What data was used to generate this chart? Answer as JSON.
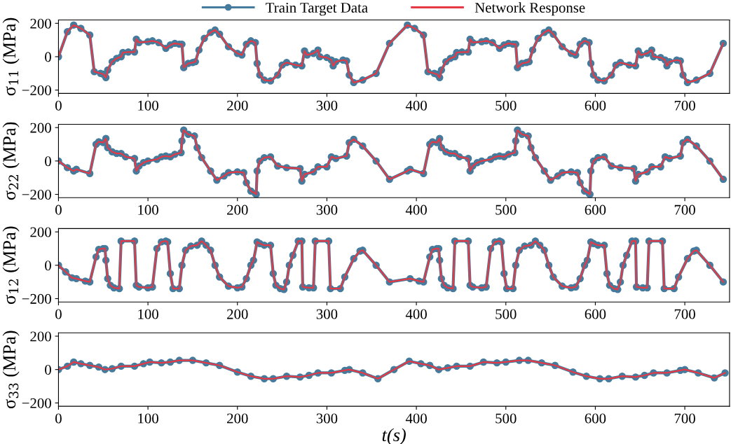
{
  "chart_data": [
    {
      "type": "line",
      "ylabel": "σ$_{11}$ (MPa)",
      "xlim": [
        0,
        750
      ],
      "ylim": [
        -220,
        220
      ],
      "xticks": [
        0,
        100,
        200,
        300,
        400,
        500,
        600,
        700
      ],
      "yticks": [
        -200,
        0,
        200
      ],
      "grid": false,
      "legend": "top",
      "x": [
        0,
        10,
        17,
        25,
        35,
        40,
        47,
        50,
        53,
        55,
        60,
        65,
        70,
        72,
        78,
        85,
        87,
        90,
        100,
        105,
        112,
        120,
        125,
        130,
        135,
        138,
        140,
        145,
        150,
        153,
        157,
        163,
        170,
        175,
        180,
        190,
        200,
        205,
        210,
        215,
        220,
        222,
        225,
        230,
        237,
        245,
        250,
        255,
        265,
        272,
        275,
        278,
        285,
        290,
        292,
        300,
        305,
        307,
        310,
        318,
        322,
        325,
        330,
        340,
        355,
        370,
        390,
        398,
        408,
        413,
        420,
        423,
        426,
        428,
        433,
        438,
        443,
        445,
        451,
        458,
        460,
        463,
        473,
        478,
        485,
        493,
        498,
        503,
        508,
        511,
        513,
        518,
        523,
        526,
        530,
        536,
        543,
        548,
        553,
        563,
        573,
        578,
        583,
        588,
        593,
        595,
        598,
        603,
        610,
        618,
        623,
        628,
        638,
        645,
        648,
        651,
        658,
        663,
        665,
        673,
        678,
        680,
        683,
        691,
        695,
        698,
        703,
        713,
        728,
        743
      ],
      "series": [
        {
          "name": "Train Target Data",
          "color": "#457b9d",
          "marker": "circle",
          "values": [
            0,
            150,
            190,
            170,
            130,
            -90,
            -100,
            -105,
            -125,
            -80,
            -30,
            -10,
            0,
            25,
            28,
            28,
            105,
            85,
            90,
            95,
            85,
            50,
            70,
            80,
            75,
            75,
            -65,
            -40,
            -35,
            -30,
            40,
            110,
            145,
            160,
            135,
            60,
            20,
            10,
            75,
            95,
            85,
            -40,
            -110,
            -140,
            -145,
            -110,
            -50,
            -35,
            -50,
            -55,
            35,
            10,
            20,
            40,
            0,
            -5,
            -20,
            -55,
            -30,
            -20,
            -25,
            -110,
            -155,
            -140,
            -100,
            80,
            190,
            170,
            130,
            -90,
            -100,
            -105,
            -125,
            -80,
            -30,
            -10,
            0,
            25,
            28,
            28,
            105,
            85,
            90,
            95,
            85,
            50,
            70,
            80,
            75,
            75,
            -65,
            -40,
            -35,
            -30,
            40,
            110,
            145,
            160,
            135,
            60,
            20,
            10,
            75,
            95,
            85,
            -40,
            -110,
            -140,
            -145,
            -110,
            -50,
            -35,
            -50,
            -55,
            35,
            10,
            20,
            40,
            0,
            -5,
            -20,
            -55,
            -30,
            -20,
            -25,
            -110,
            -155,
            -140,
            -100,
            80
          ]
        },
        {
          "name": "Network Response",
          "color": "#e63946",
          "marker": "none",
          "values": [
            0,
            150,
            190,
            170,
            130,
            -90,
            -100,
            -105,
            -125,
            -80,
            -30,
            -10,
            0,
            25,
            28,
            28,
            105,
            85,
            90,
            95,
            85,
            50,
            70,
            80,
            75,
            75,
            -65,
            -40,
            -35,
            -30,
            40,
            110,
            145,
            160,
            135,
            60,
            20,
            10,
            75,
            95,
            85,
            -40,
            -110,
            -140,
            -145,
            -110,
            -50,
            -35,
            -50,
            -55,
            35,
            10,
            20,
            40,
            0,
            -5,
            -20,
            -55,
            -30,
            -20,
            -25,
            -110,
            -155,
            -140,
            -100,
            80,
            190,
            170,
            130,
            -90,
            -100,
            -105,
            -125,
            -80,
            -30,
            -10,
            0,
            25,
            28,
            28,
            105,
            85,
            90,
            95,
            85,
            50,
            70,
            80,
            75,
            75,
            -65,
            -40,
            -35,
            -30,
            40,
            110,
            145,
            160,
            135,
            60,
            20,
            10,
            75,
            95,
            85,
            -40,
            -110,
            -140,
            -145,
            -110,
            -50,
            -35,
            -50,
            -55,
            35,
            10,
            20,
            40,
            0,
            -5,
            -20,
            -55,
            -30,
            -20,
            -25,
            -110,
            -155,
            -140,
            -100,
            80
          ]
        }
      ]
    },
    {
      "type": "line",
      "ylabel": "σ$_{22}$ (MPa)",
      "xlim": [
        0,
        750
      ],
      "ylim": [
        -220,
        220
      ],
      "xticks": [
        0,
        100,
        200,
        300,
        400,
        500,
        600,
        700
      ],
      "yticks": [
        -200,
        0,
        200
      ],
      "grid": false,
      "x": [
        0,
        10,
        17,
        20,
        35,
        42,
        45,
        50,
        53,
        55,
        60,
        65,
        70,
        75,
        85,
        87,
        90,
        95,
        100,
        110,
        115,
        120,
        125,
        130,
        137,
        138,
        140,
        145,
        152,
        155,
        160,
        170,
        177,
        185,
        190,
        200,
        207,
        210,
        215,
        220,
        221,
        222,
        225,
        230,
        237,
        245,
        255,
        270,
        272,
        275,
        285,
        290,
        300,
        305,
        310,
        322,
        325,
        330,
        340,
        355,
        370,
        390,
        393,
        408,
        415,
        418,
        423,
        426,
        428,
        433,
        438,
        443,
        448,
        458,
        460,
        463,
        468,
        473,
        483,
        488,
        493,
        498,
        503,
        510,
        511,
        513,
        518,
        525,
        528,
        533,
        543,
        550,
        558,
        563,
        573,
        580,
        583,
        588,
        593,
        594,
        595,
        598,
        603,
        610,
        618,
        628,
        643,
        645,
        648,
        658,
        663,
        673,
        678,
        683,
        695,
        698,
        703,
        713,
        728,
        743
      ],
      "series": [
        {
          "color": "#457b9d",
          "marker": "circle",
          "values": [
            0,
            -40,
            -60,
            -50,
            -75,
            100,
            115,
            110,
            135,
            80,
            55,
            45,
            45,
            25,
            15,
            -60,
            -30,
            -10,
            0,
            10,
            25,
            30,
            25,
            40,
            50,
            120,
            185,
            160,
            150,
            80,
            20,
            -60,
            -115,
            -90,
            -70,
            -65,
            -70,
            -130,
            -180,
            -195,
            -200,
            -60,
            0,
            20,
            25,
            -30,
            -40,
            -45,
            -120,
            -80,
            -65,
            -35,
            -35,
            25,
            15,
            30,
            110,
            130,
            90,
            0,
            -110,
            -60,
            -50,
            -75,
            100,
            115,
            110,
            135,
            80,
            55,
            45,
            45,
            25,
            15,
            -60,
            -30,
            -10,
            0,
            10,
            25,
            30,
            25,
            40,
            50,
            120,
            185,
            160,
            150,
            80,
            20,
            -60,
            -115,
            -90,
            -70,
            -65,
            -70,
            -130,
            -180,
            -195,
            -200,
            -60,
            0,
            20,
            25,
            -30,
            -40,
            -45,
            -120,
            -80,
            -65,
            -35,
            -35,
            25,
            15,
            30,
            110,
            130,
            90,
            0,
            -110
          ]
        },
        {
          "color": "#e63946",
          "marker": "none",
          "values": [
            0,
            -40,
            -60,
            -50,
            -75,
            100,
            115,
            110,
            135,
            80,
            55,
            45,
            45,
            25,
            15,
            -60,
            -30,
            -10,
            0,
            10,
            25,
            30,
            25,
            40,
            50,
            120,
            185,
            160,
            150,
            80,
            20,
            -60,
            -115,
            -90,
            -70,
            -65,
            -70,
            -130,
            -180,
            -195,
            -200,
            -60,
            0,
            20,
            25,
            -30,
            -40,
            -45,
            -120,
            -80,
            -65,
            -35,
            -35,
            25,
            15,
            30,
            110,
            130,
            90,
            0,
            -110,
            -60,
            -50,
            -75,
            100,
            115,
            110,
            135,
            80,
            55,
            45,
            45,
            25,
            15,
            -60,
            -30,
            -10,
            0,
            10,
            25,
            30,
            25,
            40,
            50,
            120,
            185,
            160,
            150,
            80,
            20,
            -60,
            -115,
            -90,
            -70,
            -65,
            -70,
            -130,
            -180,
            -195,
            -200,
            -60,
            0,
            20,
            25,
            -30,
            -40,
            -45,
            -120,
            -80,
            -65,
            -35,
            -35,
            25,
            15,
            30,
            110,
            130,
            90,
            0,
            -110
          ]
        }
      ]
    },
    {
      "type": "line",
      "ylabel": "σ$_{12}$ (MPa)",
      "xlim": [
        0,
        750
      ],
      "ylim": [
        -220,
        220
      ],
      "xticks": [
        0,
        100,
        200,
        300,
        400,
        500,
        600,
        700
      ],
      "yticks": [
        -200,
        0,
        200
      ],
      "grid": false,
      "x": [
        0,
        8,
        15,
        20,
        30,
        35,
        42,
        45,
        50,
        52,
        53,
        55,
        58,
        62,
        68,
        70,
        85,
        87,
        90,
        100,
        105,
        110,
        115,
        120,
        122,
        125,
        128,
        135,
        138,
        142,
        148,
        155,
        160,
        165,
        170,
        175,
        180,
        190,
        200,
        205,
        210,
        215,
        218,
        222,
        225,
        230,
        237,
        240,
        243,
        248,
        252,
        255,
        258,
        262,
        268,
        272,
        273,
        280,
        285,
        287,
        302,
        304,
        315,
        320,
        330,
        337,
        340,
        355,
        370,
        393,
        403,
        408,
        415,
        418,
        423,
        425,
        426,
        428,
        431,
        435,
        441,
        443,
        458,
        460,
        463,
        473,
        478,
        483,
        488,
        493,
        495,
        498,
        501,
        508,
        511,
        515,
        521,
        528,
        533,
        538,
        543,
        548,
        553,
        563,
        573,
        578,
        583,
        588,
        591,
        595,
        598,
        603,
        610,
        613,
        616,
        621,
        625,
        628,
        631,
        635,
        641,
        645,
        646,
        653,
        658,
        660,
        675,
        677,
        688,
        693,
        703,
        710,
        713,
        728,
        743
      ],
      "series": [
        {
          "color": "#457b9d",
          "marker": "circle",
          "values": [
            0,
            -40,
            -75,
            -80,
            -95,
            -100,
            50,
            95,
            100,
            100,
            30,
            -80,
            -120,
            -135,
            -140,
            145,
            145,
            -120,
            -130,
            -135,
            -130,
            100,
            140,
            145,
            140,
            -50,
            -140,
            -140,
            0,
            90,
            115,
            120,
            145,
            120,
            90,
            0,
            -70,
            -125,
            -135,
            -130,
            -80,
            0,
            30,
            140,
            130,
            120,
            120,
            -50,
            -120,
            -140,
            -145,
            -100,
            0,
            60,
            145,
            145,
            -130,
            -135,
            -135,
            145,
            145,
            -140,
            -140,
            -70,
            40,
            85,
            90,
            0,
            -100,
            -80,
            -95,
            -100,
            50,
            95,
            100,
            100,
            30,
            -80,
            -120,
            -135,
            -140,
            145,
            145,
            -120,
            -130,
            -135,
            -130,
            100,
            140,
            145,
            140,
            -50,
            -140,
            -140,
            0,
            90,
            115,
            120,
            145,
            120,
            90,
            0,
            -70,
            -125,
            -135,
            -130,
            -80,
            0,
            30,
            140,
            130,
            120,
            120,
            -50,
            -120,
            -140,
            -145,
            -100,
            0,
            60,
            145,
            145,
            -130,
            -135,
            -135,
            145,
            145,
            -140,
            -140,
            -70,
            40,
            85,
            90,
            0,
            -100
          ]
        },
        {
          "color": "#e63946",
          "marker": "none",
          "values": [
            0,
            -40,
            -75,
            -80,
            -95,
            -100,
            50,
            95,
            100,
            100,
            30,
            -80,
            -120,
            -135,
            -140,
            145,
            145,
            -120,
            -130,
            -135,
            -130,
            100,
            140,
            145,
            140,
            -50,
            -140,
            -140,
            0,
            90,
            115,
            120,
            145,
            120,
            90,
            0,
            -70,
            -125,
            -135,
            -130,
            -80,
            0,
            30,
            140,
            130,
            120,
            120,
            -50,
            -120,
            -140,
            -145,
            -100,
            0,
            60,
            145,
            145,
            -130,
            -135,
            -135,
            145,
            145,
            -140,
            -140,
            -70,
            40,
            85,
            90,
            0,
            -100,
            -80,
            -95,
            -100,
            50,
            95,
            100,
            100,
            30,
            -80,
            -120,
            -135,
            -140,
            145,
            145,
            -120,
            -130,
            -135,
            -130,
            100,
            140,
            145,
            140,
            -50,
            -140,
            -140,
            0,
            90,
            115,
            120,
            145,
            120,
            90,
            0,
            -70,
            -125,
            -135,
            -130,
            -80,
            0,
            30,
            140,
            130,
            120,
            120,
            -50,
            -120,
            -140,
            -145,
            -100,
            0,
            60,
            145,
            145,
            -130,
            -135,
            -135,
            145,
            145,
            -140,
            -140,
            -70,
            40,
            85,
            90,
            0,
            -100
          ]
        }
      ]
    },
    {
      "type": "line",
      "ylabel": "σ$_{33}$ (MPa)",
      "xlabel": "t(s)",
      "xlim": [
        0,
        750
      ],
      "ylim": [
        -220,
        220
      ],
      "xticks": [
        0,
        100,
        200,
        300,
        400,
        500,
        600,
        700
      ],
      "yticks": [
        -200,
        0,
        200
      ],
      "grid": false,
      "x": [
        0,
        10,
        17,
        25,
        35,
        45,
        52,
        60,
        70,
        85,
        95,
        102,
        115,
        125,
        135,
        150,
        165,
        180,
        200,
        215,
        230,
        240,
        255,
        270,
        280,
        290,
        305,
        320,
        325,
        340,
        357,
        375,
        392,
        405,
        415,
        425,
        435,
        445,
        460,
        475,
        490,
        500,
        515,
        525,
        540,
        555,
        575,
        590,
        605,
        615,
        630,
        645,
        655,
        665,
        680,
        695,
        700,
        715,
        733,
        745
      ],
      "series": [
        {
          "color": "#457b9d",
          "marker": "circle",
          "values": [
            0,
            20,
            45,
            35,
            25,
            15,
            0,
            5,
            20,
            20,
            35,
            45,
            40,
            45,
            55,
            55,
            40,
            25,
            -15,
            -40,
            -55,
            -55,
            -40,
            -45,
            -35,
            -20,
            -20,
            -5,
            0,
            -20,
            -55,
            0,
            50,
            35,
            25,
            0,
            10,
            20,
            20,
            45,
            40,
            45,
            55,
            55,
            40,
            25,
            -15,
            -40,
            -55,
            -55,
            -40,
            -45,
            -35,
            -20,
            -20,
            -5,
            0,
            -20,
            -50,
            -20
          ]
        },
        {
          "color": "#e63946",
          "marker": "none",
          "values": [
            0,
            20,
            45,
            35,
            25,
            15,
            0,
            5,
            20,
            20,
            35,
            45,
            40,
            45,
            55,
            55,
            40,
            25,
            -15,
            -40,
            -55,
            -55,
            -40,
            -45,
            -35,
            -20,
            -20,
            -5,
            0,
            -20,
            -55,
            0,
            50,
            35,
            25,
            0,
            10,
            20,
            20,
            45,
            40,
            45,
            55,
            55,
            40,
            25,
            -15,
            -40,
            -55,
            -55,
            -40,
            -45,
            -35,
            -20,
            -20,
            -5,
            0,
            -20,
            -50,
            -20
          ]
        }
      ]
    }
  ]
}
